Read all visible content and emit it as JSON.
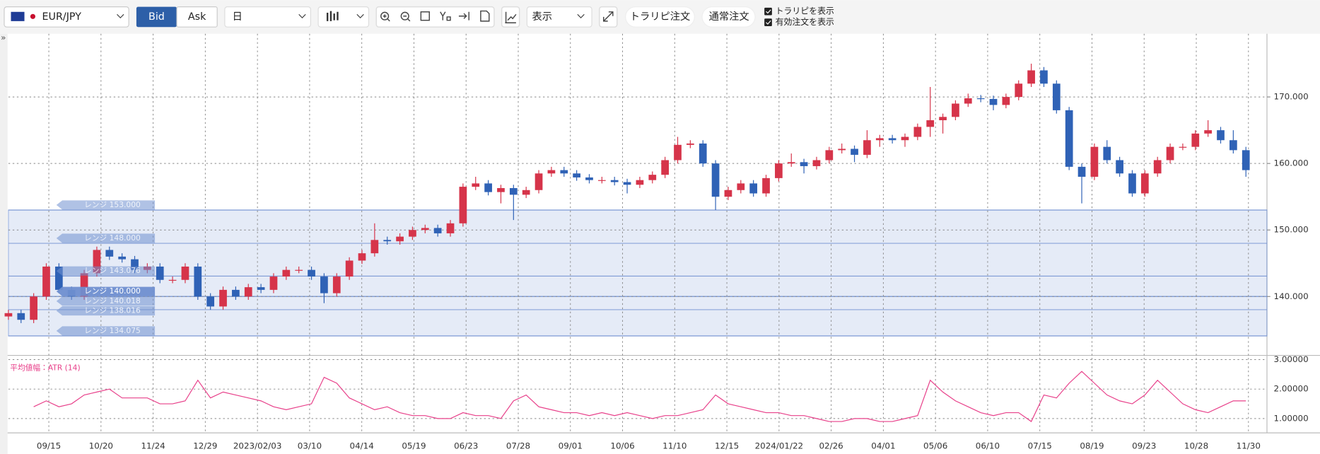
{
  "toolbar": {
    "symbol": "EUR/JPY",
    "bid": "Bid",
    "ask": "Ask",
    "period": "日",
    "display": "表示",
    "trarip_order": "トラリピ注文",
    "normal_order": "通常注文",
    "show_trarip": "トラリピを表示",
    "show_orders": "有効注文を表示",
    "expand": "»"
  },
  "chart_data": {
    "type": "candlestick",
    "up_color": "#d6344a",
    "down_color": "#2f62b6",
    "grid": true,
    "ylim": [
      131.5,
      179.5
    ],
    "yticks": [
      {
        "value": 140,
        "label": "140.000"
      },
      {
        "value": 150,
        "label": "150.000"
      },
      {
        "value": 160,
        "label": "160.000"
      },
      {
        "value": 170,
        "label": "170.000"
      }
    ],
    "xticks": [
      "09/15",
      "10/20",
      "11/24",
      "12/29",
      "2023/02/03",
      "03/10",
      "04/14",
      "05/19",
      "06/23",
      "07/28",
      "09/01",
      "10/06",
      "11/10",
      "12/15",
      "2024/01/22",
      "02/26",
      "04/01",
      "05/06",
      "06/10",
      "07/15",
      "08/19",
      "09/23",
      "10/28",
      "11/30"
    ],
    "candles": [
      [
        137,
        138,
        136.5,
        137.5
      ],
      [
        137.5,
        138,
        136,
        136.5
      ],
      [
        136.5,
        140.5,
        136,
        140
      ],
      [
        140,
        145,
        139.5,
        144.5
      ],
      [
        144.5,
        145,
        140.5,
        141
      ],
      [
        141,
        141.5,
        139.5,
        140
      ],
      [
        140,
        144,
        139.5,
        143.5
      ],
      [
        143.5,
        147.5,
        143,
        147
      ],
      [
        147,
        147.5,
        145.5,
        146
      ],
      [
        146,
        146.5,
        145.1,
        145.6
      ],
      [
        145.6,
        146.1,
        143.5,
        144
      ],
      [
        144,
        145,
        143.5,
        144.5
      ],
      [
        144.5,
        145,
        142,
        142.5
      ],
      [
        142.5,
        143,
        142,
        142.5
      ],
      [
        142.5,
        145,
        142,
        144.5
      ],
      [
        144.5,
        145,
        139.5,
        140
      ],
      [
        140,
        140.5,
        138,
        138.5
      ],
      [
        138.5,
        141.5,
        138,
        141
      ],
      [
        141,
        141.5,
        139.5,
        140
      ],
      [
        140,
        141.9,
        139.5,
        141.4
      ],
      [
        141.4,
        141.9,
        140.5,
        141
      ],
      [
        141,
        143.5,
        140.5,
        143
      ],
      [
        143,
        144.5,
        142.5,
        144
      ],
      [
        144,
        144.5,
        143.5,
        144
      ],
      [
        144,
        144.5,
        142.5,
        143
      ],
      [
        143,
        143.5,
        139,
        140.5
      ],
      [
        140.5,
        143.5,
        140,
        143
      ],
      [
        143,
        145.9,
        142.5,
        145.4
      ],
      [
        145.4,
        147,
        144.9,
        146.5
      ],
      [
        146.5,
        151,
        146,
        148.5
      ],
      [
        148.5,
        149,
        147.8,
        148.3
      ],
      [
        148.3,
        149.5,
        147.8,
        149
      ],
      [
        149,
        150.5,
        148.5,
        150
      ],
      [
        150,
        150.8,
        149.5,
        150.3
      ],
      [
        150.3,
        150.8,
        149,
        149.5
      ],
      [
        149.5,
        151.5,
        149,
        151
      ],
      [
        151,
        157,
        150.5,
        156.5
      ],
      [
        156.5,
        158,
        156,
        157
      ],
      [
        157,
        157.5,
        155.2,
        155.7
      ],
      [
        155.7,
        156.8,
        154,
        156.3
      ],
      [
        156.3,
        156.8,
        151.5,
        155.3
      ],
      [
        155.3,
        156.5,
        154.8,
        156
      ],
      [
        156,
        159,
        155.5,
        158.5
      ],
      [
        158.5,
        159.5,
        158,
        159
      ],
      [
        159,
        159.5,
        158,
        158.5
      ],
      [
        158.5,
        159,
        157.4,
        157.9
      ],
      [
        157.9,
        158.4,
        157,
        157.5
      ],
      [
        157.5,
        158,
        157,
        157.5
      ],
      [
        157.5,
        158,
        156.7,
        157.2
      ],
      [
        157.2,
        157.7,
        155.5,
        156.8
      ],
      [
        156.8,
        158,
        156.3,
        157.5
      ],
      [
        157.5,
        158.8,
        157,
        158.3
      ],
      [
        158.3,
        161,
        157.8,
        160.5
      ],
      [
        160.5,
        164,
        160,
        162.8
      ],
      [
        162.8,
        163.5,
        162.3,
        163
      ],
      [
        163,
        163.5,
        159.5,
        160
      ],
      [
        160,
        160.5,
        153,
        155
      ],
      [
        155,
        156.5,
        154.5,
        156
      ],
      [
        156,
        157.5,
        155.5,
        157
      ],
      [
        157,
        157.5,
        155,
        155.5
      ],
      [
        155.5,
        158.3,
        155,
        157.8
      ],
      [
        157.8,
        160.5,
        157.3,
        160
      ],
      [
        160,
        161.5,
        159.5,
        160.2
      ],
      [
        160.2,
        160.7,
        158.5,
        159.6
      ],
      [
        159.6,
        161,
        159.1,
        160.5
      ],
      [
        160.5,
        162.5,
        160,
        162
      ],
      [
        162,
        163,
        161.5,
        162.2
      ],
      [
        162.2,
        162.7,
        160.2,
        161.3
      ],
      [
        161.3,
        165,
        160.8,
        163.5
      ],
      [
        163.5,
        164.3,
        162.5,
        163.8
      ],
      [
        163.8,
        164.3,
        163,
        163.5
      ],
      [
        163.5,
        164.5,
        162.5,
        164
      ],
      [
        164,
        166,
        163.5,
        165.5
      ],
      [
        165.5,
        171.5,
        164,
        166.5
      ],
      [
        166.5,
        167.5,
        164.5,
        167
      ],
      [
        167,
        169.5,
        166.5,
        169
      ],
      [
        169,
        170.5,
        168.5,
        169.8
      ],
      [
        169.8,
        170.3,
        169.2,
        169.7
      ],
      [
        169.7,
        170.2,
        168,
        168.8
      ],
      [
        168.8,
        170.5,
        168.3,
        170
      ],
      [
        170,
        172.5,
        169.5,
        172
      ],
      [
        172,
        175,
        171.5,
        174
      ],
      [
        174,
        174.5,
        171.5,
        172
      ],
      [
        172,
        172.5,
        167.5,
        168
      ],
      [
        168,
        168.5,
        159,
        159.5
      ],
      [
        159.5,
        160,
        154,
        158
      ],
      [
        158,
        163,
        157.5,
        162.5
      ],
      [
        162.5,
        163.5,
        160,
        160.5
      ],
      [
        160.5,
        161,
        158,
        158.5
      ],
      [
        158.5,
        159,
        155,
        155.5
      ],
      [
        155.5,
        159,
        155,
        158.5
      ],
      [
        158.5,
        161,
        158,
        160.5
      ],
      [
        160.5,
        163,
        160,
        162.5
      ],
      [
        162.5,
        163,
        162,
        162.5
      ],
      [
        162.5,
        165,
        162,
        164.5
      ],
      [
        164.5,
        166.5,
        164,
        165
      ],
      [
        165,
        165.5,
        163,
        163.5
      ],
      [
        163.5,
        165,
        161.5,
        162
      ],
      [
        162,
        162.5,
        158,
        159
      ]
    ],
    "range_color": "#6f8fd0",
    "ranges": [
      {
        "label": "レンジ 153.000",
        "value": 153
      },
      {
        "label": "レンジ 148.000",
        "value": 148
      },
      {
        "label": "レンジ 143.076",
        "value": 143.076
      },
      {
        "label": "レンジ 140.000",
        "value": 140
      },
      {
        "label": "レンジ 140.018",
        "value": 140.018
      },
      {
        "label": "レンジ 138.016",
        "value": 138.016
      },
      {
        "label": "レンジ 134.075",
        "value": 134.075
      }
    ],
    "indicator": {
      "label": "平均値幅：ATR (14)",
      "color": "#e8408a",
      "ylim": [
        0.57,
        3.0
      ],
      "yticks": [
        {
          "value": 1,
          "label": "1.00000"
        },
        {
          "value": 2,
          "label": "2.00000"
        },
        {
          "value": 3,
          "label": "3.00000"
        }
      ],
      "values": [
        null,
        null,
        1.4,
        1.6,
        1.4,
        1.5,
        1.8,
        1.9,
        2.0,
        1.7,
        1.7,
        1.7,
        1.5,
        1.5,
        1.6,
        2.3,
        1.7,
        1.9,
        1.8,
        1.7,
        1.6,
        1.4,
        1.3,
        1.4,
        1.5,
        2.4,
        2.2,
        1.7,
        1.5,
        1.3,
        1.4,
        1.2,
        1.1,
        1.1,
        1.0,
        1.0,
        1.2,
        1.1,
        1.1,
        1.0,
        1.6,
        1.8,
        1.4,
        1.3,
        1.2,
        1.2,
        1.1,
        1.2,
        1.1,
        1.2,
        1.1,
        1.0,
        1.1,
        1.1,
        1.2,
        1.3,
        1.8,
        1.5,
        1.4,
        1.3,
        1.2,
        1.2,
        1.1,
        1.1,
        1.0,
        0.9,
        0.9,
        1.0,
        1.0,
        0.9,
        0.9,
        1.0,
        1.1,
        2.3,
        1.9,
        1.6,
        1.4,
        1.2,
        1.1,
        1.2,
        1.2,
        0.9,
        1.8,
        1.7,
        2.2,
        2.6,
        2.2,
        1.8,
        1.6,
        1.5,
        1.8,
        2.3,
        1.9,
        1.5,
        1.3,
        1.2,
        1.4,
        1.6,
        1.6
      ]
    }
  }
}
